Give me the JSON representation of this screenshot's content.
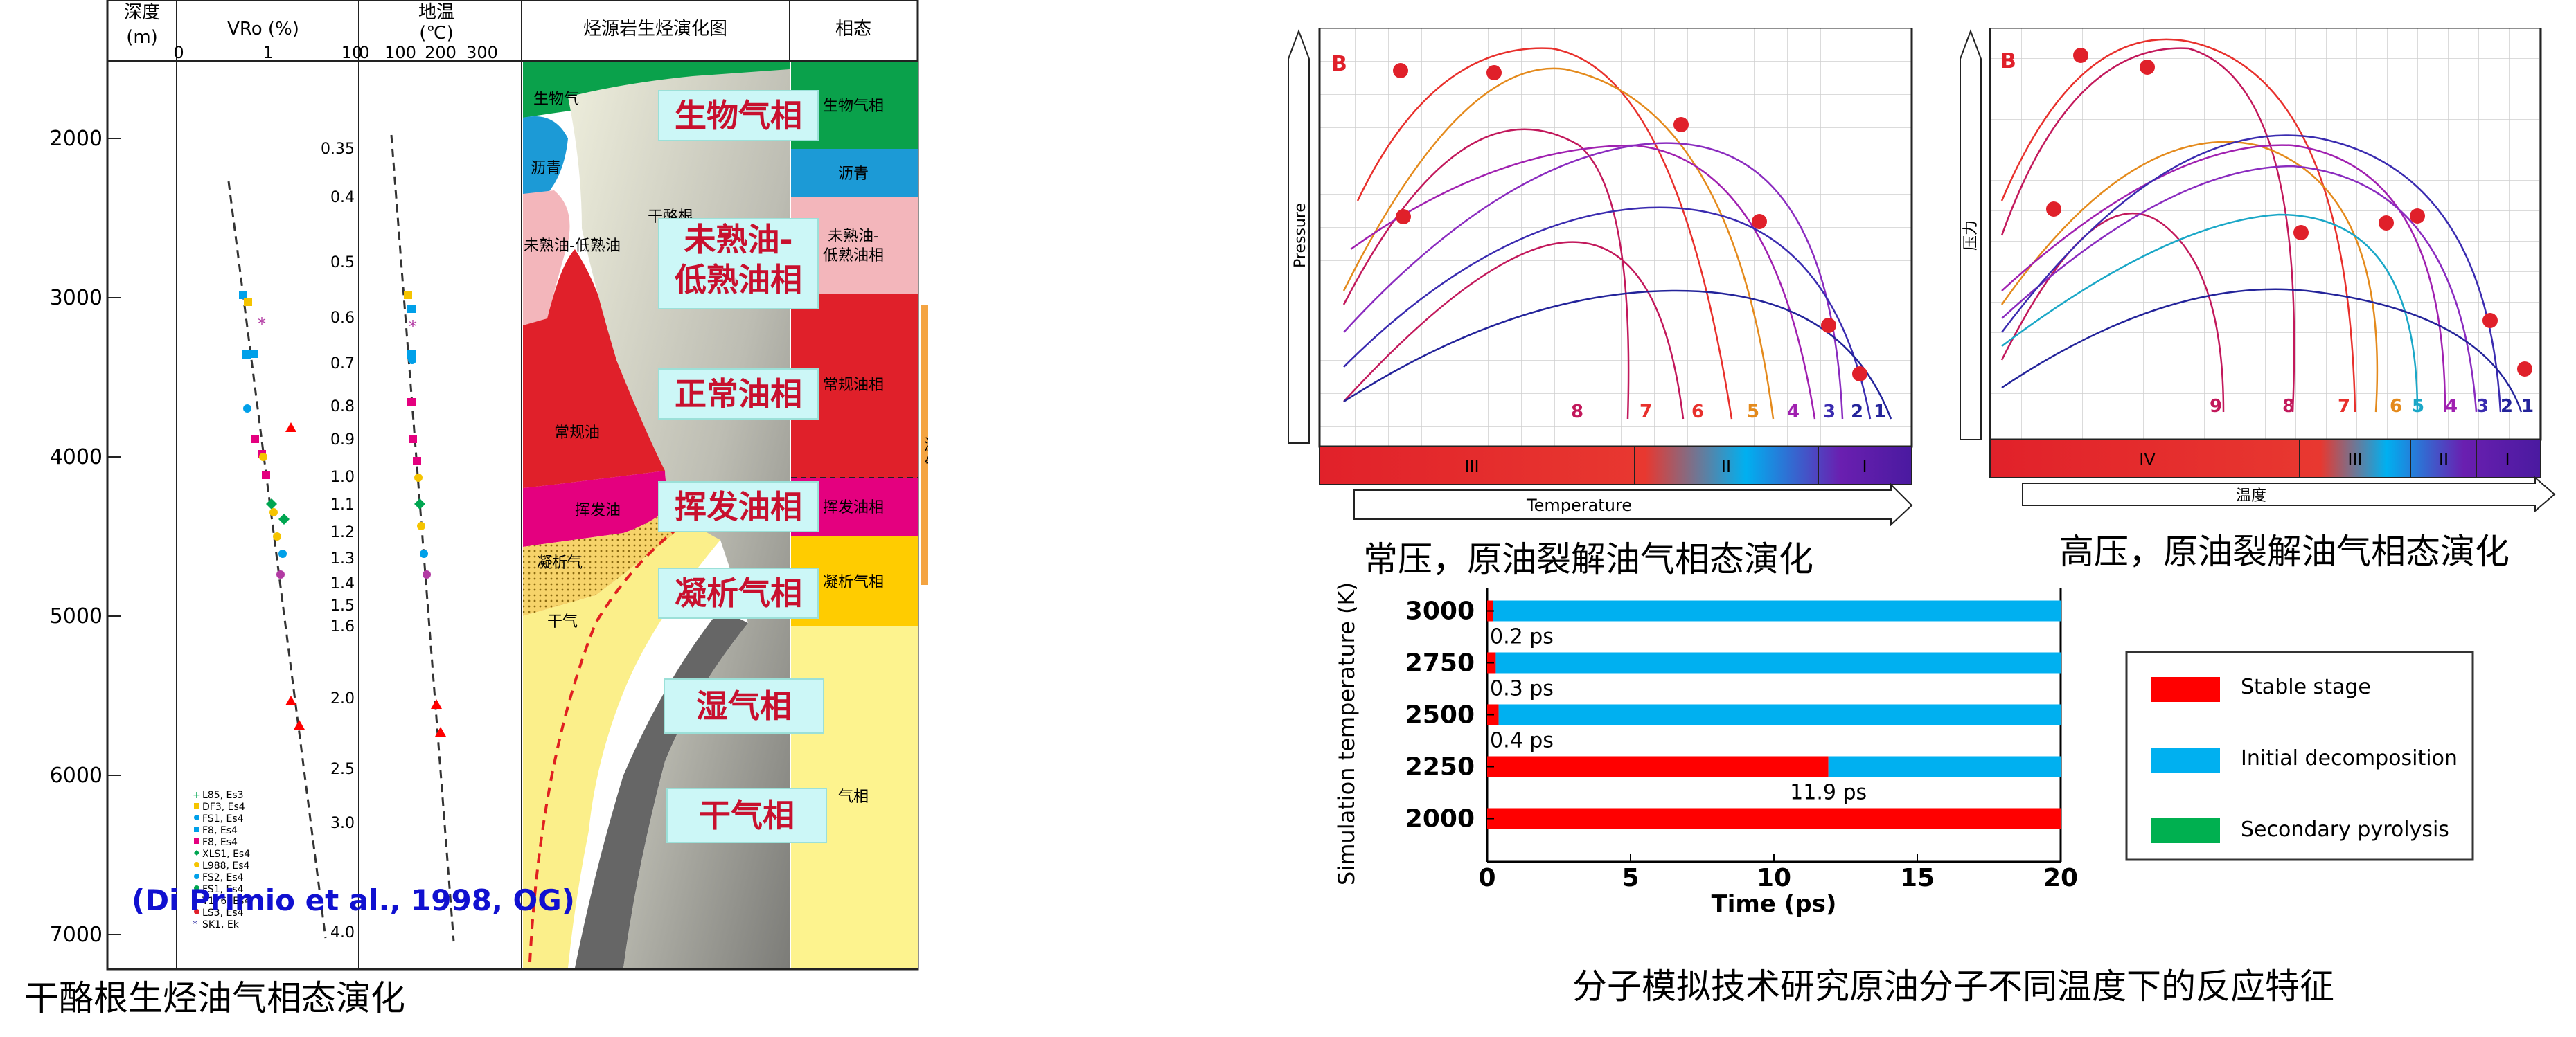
{
  "left": {
    "headers": {
      "depth": "深度",
      "depth_unit": "(m)",
      "vro": "VRo (%)",
      "temp": "地温",
      "temp_unit": "(℃)",
      "evolution": "烃源岩生烃演化图",
      "phase": "相态"
    },
    "depth_ticks": [
      "2000",
      "3000",
      "4000",
      "5000",
      "6000",
      "7000"
    ],
    "vro_ticks": [
      "0",
      "1",
      "10"
    ],
    "temp_ticks": [
      "0",
      "100",
      "200",
      "300"
    ],
    "ro_scale": [
      "0.35",
      "0.4",
      "0.5",
      "0.6",
      "0.7",
      "0.8",
      "0.9",
      "1.0",
      "1.1",
      "1.2",
      "1.3",
      "1.4",
      "1.5",
      "1.6",
      "2.0",
      "2.5",
      "3.0",
      "4.0"
    ],
    "zone_labels": [
      "生物气",
      "沥青",
      "干酪根",
      "未熟油-低熟油",
      "常规油",
      "挥发油",
      "凝析气",
      "干气"
    ],
    "phase_column": [
      "生物气相",
      "沥青",
      "未熟油-低熟油相",
      "常规油相",
      "挥发油相",
      "凝析气相",
      "气相"
    ],
    "wet_gas": "湿气",
    "overlay": [
      "生物气相",
      "未熟油-低熟油相",
      "正常油相",
      "挥发油相",
      "凝析气相",
      "湿气相",
      "干气相"
    ],
    "legend": [
      "L85, Es3",
      "DF3, Es4",
      "FS1, Es4",
      "F8, Es4",
      "F8, Es4",
      "XLS1, Es4",
      "L988, Es4",
      "FS2, Es4",
      "FS1, Es4",
      "T176, Es4",
      "LS3, Es4",
      "SK1, Ek"
    ],
    "citation": "(Di Primio et al., 1998, OG)",
    "caption": "干酪根生烃油气相态演化"
  },
  "normal": {
    "letter": "B",
    "ylabel": "Pressure",
    "xlabel": "Temperature",
    "curve_numbers": [
      "8",
      "7",
      "6",
      "5",
      "4",
      "3",
      "2",
      "1"
    ],
    "bands": [
      "III",
      "II",
      "I"
    ],
    "caption": "常压，原油裂解油气相态演化"
  },
  "high": {
    "letter": "B",
    "ylabel": "压力",
    "xlabel": "温度",
    "curve_numbers": [
      "9",
      "8",
      "7",
      "6",
      "5",
      "4",
      "3",
      "2",
      "1"
    ],
    "bands": [
      "IV",
      "III",
      "II",
      "I"
    ],
    "caption": "高压，原油裂解油气相态演化"
  },
  "chart_data": {
    "type": "bar",
    "orientation": "horizontal",
    "categories": [
      "3000",
      "2750",
      "2500",
      "2250",
      "2000"
    ],
    "series": [
      {
        "name": "Stable stage",
        "values": [
          0.2,
          0.3,
          0.4,
          11.9,
          20
        ]
      },
      {
        "name": "Initial decomposition",
        "values": [
          19.8,
          19.7,
          19.6,
          8.1,
          0
        ]
      },
      {
        "name": "Secondary pyrolysis",
        "values": [
          0,
          0,
          0,
          0,
          0
        ]
      }
    ],
    "annotations": [
      "0.2 ps",
      "0.3 ps",
      "0.4 ps",
      "11.9 ps"
    ],
    "xlabel": "Time (ps)",
    "ylabel": "Simulation temperature (K)",
    "xticks": [
      "0",
      "5",
      "10",
      "15",
      "20"
    ],
    "xlim": [
      0,
      20
    ],
    "colors": {
      "Stable stage": "#ff0000",
      "Initial decomposition": "#00b0f0",
      "Secondary pyrolysis": "#00b050"
    },
    "legend": "right",
    "caption": "分子模拟技术研究原油分子不同温度下的反应特征"
  }
}
